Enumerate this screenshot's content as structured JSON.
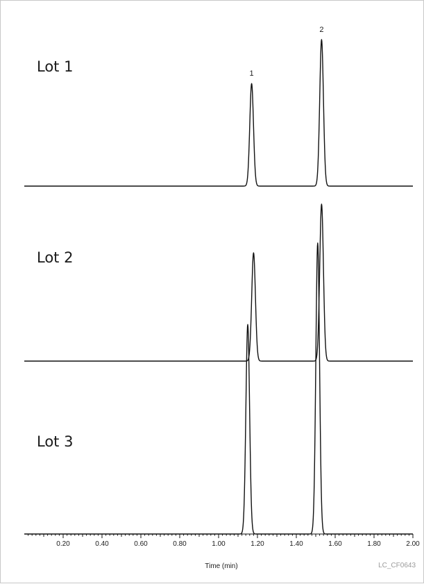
{
  "chart_data": {
    "type": "line",
    "title": "",
    "xlabel": "Time (min)",
    "ylabel": "",
    "xlim": [
      0.0,
      2.0
    ],
    "x_tick_labels": [
      "0.20",
      "0.40",
      "0.60",
      "0.80",
      "1.00",
      "1.20",
      "1.40",
      "1.60",
      "1.80",
      "2.00"
    ],
    "x_ticks": [
      0.2,
      0.4,
      0.6,
      0.8,
      1.0,
      1.2,
      1.4,
      1.6,
      1.8,
      2.0
    ],
    "grid": false,
    "legend": "none",
    "figure_id": "LC_CF0643",
    "peak_labels": [
      {
        "text": "1",
        "x": 1.17
      },
      {
        "text": "2",
        "x": 1.53
      }
    ],
    "series": [
      {
        "name": "Lot 1",
        "peaks": [
          {
            "label": "1",
            "retention_time": 1.17,
            "relative_height": 0.7
          },
          {
            "label": "2",
            "retention_time": 1.53,
            "relative_height": 1.0
          }
        ]
      },
      {
        "name": "Lot 2",
        "peaks": [
          {
            "label": "1",
            "retention_time": 1.18,
            "relative_height": 0.69
          },
          {
            "label": "2",
            "retention_time": 1.53,
            "relative_height": 1.0
          }
        ]
      },
      {
        "name": "Lot 3",
        "peaks": [
          {
            "label": "1",
            "retention_time": 1.15,
            "relative_height": 0.72
          },
          {
            "label": "2",
            "retention_time": 1.51,
            "relative_height": 1.0
          }
        ]
      }
    ]
  }
}
